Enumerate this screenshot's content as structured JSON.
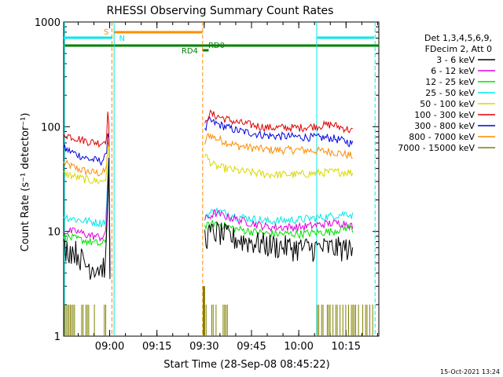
{
  "chart_data": {
    "type": "line",
    "title": "RHESSI Observing Summary Count Rates",
    "xlabel": "Start Time (28-Sep-08 08:45:22)",
    "ylabel": "Count Rate (s⁻¹ detector⁻¹)",
    "y_scale": "log",
    "ylim": [
      1,
      1000
    ],
    "y_ticks": [
      {
        "value": 1,
        "label": "1"
      },
      {
        "value": 10,
        "label": "10"
      },
      {
        "value": 100,
        "label": "100"
      },
      {
        "value": 1000,
        "label": "1000"
      }
    ],
    "x_unit": "minutes from 08:45:22",
    "xlim": [
      0,
      100
    ],
    "x_ticks": [
      {
        "value": 14.6,
        "label": "09:00"
      },
      {
        "value": 29.6,
        "label": "09:15"
      },
      {
        "value": 44.6,
        "label": "09:30"
      },
      {
        "value": 59.6,
        "label": "09:45"
      },
      {
        "value": 74.6,
        "label": "10:00"
      },
      {
        "value": 89.6,
        "label": "10:15"
      }
    ],
    "legend_header": [
      "Det 1,3,4,5,6,9,",
      "FDecim 2, Att 0"
    ],
    "legend_placement": "right",
    "series": [
      {
        "name": "3 - 6 keV",
        "color": "#000000",
        "points": [
          [
            0,
            7
          ],
          [
            4,
            6.5
          ],
          [
            7,
            4.8
          ],
          [
            12,
            4.5
          ],
          [
            13.5,
            5
          ],
          [
            14.3,
            60
          ],
          [
            14.8,
            2
          ]
        ],
        "points2": [
          [
            44.8,
            9
          ],
          [
            48,
            10
          ],
          [
            55,
            8.5
          ],
          [
            65,
            7.5
          ],
          [
            75,
            7
          ],
          [
            85,
            7
          ],
          [
            90,
            7
          ],
          [
            92,
            6
          ]
        ]
      },
      {
        "name": "6 - 12 keV",
        "color": "#e000e0",
        "points": [
          [
            0,
            10
          ],
          [
            4,
            10
          ],
          [
            8,
            9.2
          ],
          [
            12,
            8.8
          ],
          [
            13.5,
            9.5
          ],
          [
            14.3,
            60
          ],
          [
            14.8,
            2
          ]
        ],
        "points2": [
          [
            44.8,
            13
          ],
          [
            48,
            15
          ],
          [
            55,
            13
          ],
          [
            65,
            11
          ],
          [
            75,
            11
          ],
          [
            85,
            12
          ],
          [
            90,
            12
          ],
          [
            92,
            11
          ]
        ]
      },
      {
        "name": "12 - 25 keV",
        "color": "#00e000",
        "points": [
          [
            0,
            9
          ],
          [
            4,
            8.5
          ],
          [
            8,
            8
          ],
          [
            12,
            7.5
          ],
          [
            13.5,
            8
          ],
          [
            14.3,
            60
          ],
          [
            14.8,
            2
          ]
        ],
        "points2": [
          [
            44.8,
            11
          ],
          [
            48,
            12
          ],
          [
            55,
            10.5
          ],
          [
            65,
            9.5
          ],
          [
            75,
            9.5
          ],
          [
            85,
            10
          ],
          [
            90,
            11
          ],
          [
            92,
            10.5
          ]
        ]
      },
      {
        "name": "25 - 50 keV",
        "color": "#00e8e8",
        "points": [
          [
            0,
            14
          ],
          [
            4,
            13
          ],
          [
            8,
            12.5
          ],
          [
            12,
            12
          ],
          [
            13.5,
            13
          ],
          [
            14.3,
            70
          ],
          [
            14.8,
            2
          ]
        ],
        "points2": [
          [
            44.8,
            14
          ],
          [
            48,
            16
          ],
          [
            55,
            14
          ],
          [
            65,
            12.5
          ],
          [
            75,
            13
          ],
          [
            85,
            14
          ],
          [
            90,
            15
          ],
          [
            92,
            14
          ]
        ]
      },
      {
        "name": "50 - 100 keV",
        "color": "#d8d800",
        "points": [
          [
            0,
            36
          ],
          [
            4,
            33
          ],
          [
            8,
            31
          ],
          [
            12,
            30
          ],
          [
            13.5,
            32
          ],
          [
            14.3,
            90
          ],
          [
            14.8,
            2
          ]
        ],
        "points2": [
          [
            44.8,
            55
          ],
          [
            46,
            48
          ],
          [
            48,
            42
          ],
          [
            55,
            38
          ],
          [
            65,
            35
          ],
          [
            75,
            35
          ],
          [
            85,
            37
          ],
          [
            90,
            37
          ],
          [
            92,
            36
          ]
        ]
      },
      {
        "name": "100 - 300 keV",
        "color": "#e00000",
        "points": [
          [
            0,
            85
          ],
          [
            4,
            78
          ],
          [
            8,
            72
          ],
          [
            12,
            70
          ],
          [
            13.5,
            75
          ],
          [
            14.3,
            180
          ],
          [
            14.8,
            2
          ]
        ],
        "points2": [
          [
            44.8,
            100
          ],
          [
            46,
            135
          ],
          [
            48,
            128
          ],
          [
            55,
            110
          ],
          [
            65,
            98
          ],
          [
            75,
            98
          ],
          [
            85,
            105
          ],
          [
            90,
            95
          ],
          [
            92,
            90
          ]
        ]
      },
      {
        "name": "300 - 800 keV",
        "color": "#0000e0",
        "points": [
          [
            0,
            62
          ],
          [
            4,
            55
          ],
          [
            8,
            49
          ],
          [
            12,
            47
          ],
          [
            13.5,
            52
          ],
          [
            14.3,
            120
          ],
          [
            14.8,
            2
          ]
        ],
        "points2": [
          [
            44.8,
            90
          ],
          [
            46,
            115
          ],
          [
            48,
            108
          ],
          [
            55,
            92
          ],
          [
            65,
            82
          ],
          [
            75,
            80
          ],
          [
            85,
            78
          ],
          [
            90,
            72
          ],
          [
            92,
            68
          ]
        ]
      },
      {
        "name": "800 - 7000 keV",
        "color": "#ff8c00",
        "points": [
          [
            0,
            45
          ],
          [
            4,
            40
          ],
          [
            8,
            37
          ],
          [
            12,
            36
          ],
          [
            13.5,
            38
          ],
          [
            14.3,
            100
          ],
          [
            14.8,
            2
          ]
        ],
        "points2": [
          [
            44.8,
            70
          ],
          [
            46,
            85
          ],
          [
            48,
            78
          ],
          [
            55,
            66
          ],
          [
            65,
            60
          ],
          [
            75,
            60
          ],
          [
            85,
            58
          ],
          [
            90,
            54
          ],
          [
            92,
            52
          ]
        ]
      },
      {
        "name": "7000 - 15000 keV",
        "color": "#808000",
        "points": [],
        "points2": []
      }
    ],
    "annotations": [
      {
        "label": "S",
        "color": "#ff8c00"
      },
      {
        "label": "N",
        "color": "#00e8e8"
      },
      {
        "label": "RD4",
        "color": "#008000"
      },
      {
        "label": "RD0",
        "color": "#008000"
      }
    ],
    "footer_date": "15-Oct-2021 13:24"
  }
}
